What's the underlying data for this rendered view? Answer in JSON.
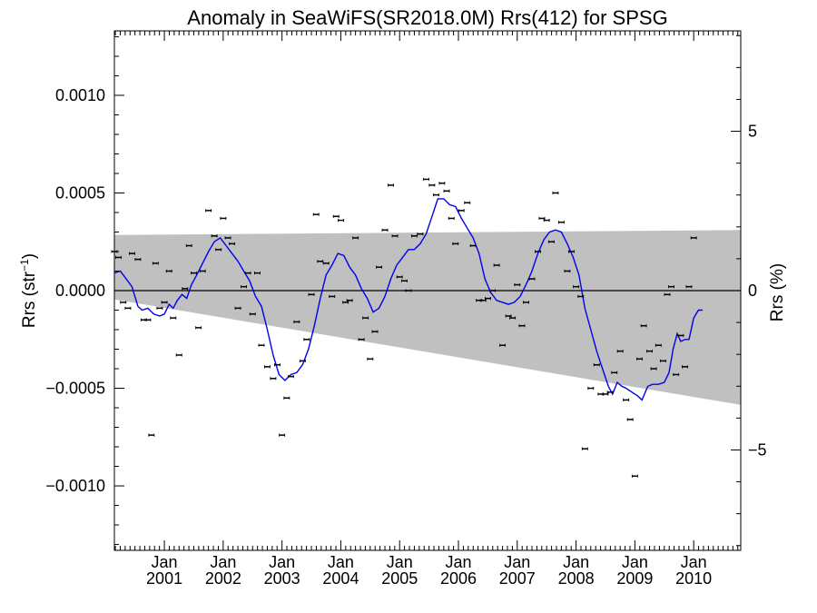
{
  "chart_data": {
    "type": "scatter",
    "title": "Anomaly in SeaWiFS(SR2018.0M) Rrs(412) for SPSG",
    "ylabel": "Rrs (str",
    "ylabel_sup": "−1",
    "ylabel_close": ")",
    "y2label": "Rrs (%)",
    "ylim": [
      -0.00133,
      0.00133
    ],
    "y2lim": [
      -8.15,
      8.15
    ],
    "xlim": [
      2000.15,
      2010.8
    ],
    "grid": false,
    "y_ticks": [
      {
        "value": 0.001,
        "label": "0.0010"
      },
      {
        "value": 0.0005,
        "label": "0.0005"
      },
      {
        "value": 0,
        "label": "0.0000"
      },
      {
        "value": -0.0005,
        "label": "−0.0005"
      },
      {
        "value": -0.001,
        "label": "−0.0010"
      }
    ],
    "y2_ticks": [
      {
        "value": 5,
        "label": "5"
      },
      {
        "value": 0,
        "label": "0"
      },
      {
        "value": -5,
        "label": "−5"
      }
    ],
    "x_ticks": [
      {
        "value": 2001.0,
        "month": "Jan",
        "year": "2001"
      },
      {
        "value": 2002.0,
        "month": "Jan",
        "year": "2002"
      },
      {
        "value": 2003.0,
        "month": "Jan",
        "year": "2003"
      },
      {
        "value": 2004.0,
        "month": "Jan",
        "year": "2004"
      },
      {
        "value": 2005.0,
        "month": "Jan",
        "year": "2005"
      },
      {
        "value": 2006.0,
        "month": "Jan",
        "year": "2006"
      },
      {
        "value": 2007.0,
        "month": "Jan",
        "year": "2007"
      },
      {
        "value": 2008.0,
        "month": "Jan",
        "year": "2008"
      },
      {
        "value": 2009.0,
        "month": "Jan",
        "year": "2009"
      },
      {
        "value": 2010.0,
        "month": "Jan",
        "year": "2010"
      }
    ],
    "shaded_band": {
      "color": "#c0c0c0",
      "upper": [
        [
          2000.15,
          0.000285
        ],
        [
          2010.8,
          0.00031
        ]
      ],
      "lower": [
        [
          2000.15,
          -4.5e-05
        ],
        [
          2010.8,
          -0.000585
        ]
      ]
    },
    "zero_line": 0,
    "series": [
      {
        "type": "line",
        "color": "#0000ee",
        "points": [
          [
            2000.15,
            9e-05
          ],
          [
            2000.25,
            0.0001
          ],
          [
            2000.35,
            6e-05
          ],
          [
            2000.45,
            2e-05
          ],
          [
            2000.55,
            -8e-05
          ],
          [
            2000.62,
            -0.0001
          ],
          [
            2000.72,
            -9e-05
          ],
          [
            2000.82,
            -0.00012
          ],
          [
            2000.92,
            -0.00013
          ],
          [
            2001.0,
            -0.00012
          ],
          [
            2001.08,
            -7e-05
          ],
          [
            2001.15,
            -9e-05
          ],
          [
            2001.22,
            -5e-05
          ],
          [
            2001.3,
            -2e-05
          ],
          [
            2001.38,
            -4e-05
          ],
          [
            2001.46,
            3e-05
          ],
          [
            2001.55,
            8e-05
          ],
          [
            2001.65,
            0.00014
          ],
          [
            2001.75,
            0.0002
          ],
          [
            2001.85,
            0.00025
          ],
          [
            2001.95,
            0.00027
          ],
          [
            2002.05,
            0.00023
          ],
          [
            2002.15,
            0.00019
          ],
          [
            2002.25,
            0.00015
          ],
          [
            2002.35,
            0.0001
          ],
          [
            2002.45,
            5e-05
          ],
          [
            2002.55,
            -3e-05
          ],
          [
            2002.65,
            -8e-05
          ],
          [
            2002.75,
            -0.0002
          ],
          [
            2002.85,
            -0.00033
          ],
          [
            2002.95,
            -0.00043
          ],
          [
            2003.05,
            -0.00046
          ],
          [
            2003.15,
            -0.00043
          ],
          [
            2003.25,
            -0.00042
          ],
          [
            2003.35,
            -0.00038
          ],
          [
            2003.45,
            -0.0003
          ],
          [
            2003.55,
            -0.00018
          ],
          [
            2003.65,
            -4e-05
          ],
          [
            2003.75,
            8e-05
          ],
          [
            2003.85,
            0.00013
          ],
          [
            2003.95,
            0.00019
          ],
          [
            2004.05,
            0.00018
          ],
          [
            2004.15,
            0.00012
          ],
          [
            2004.25,
            8e-05
          ],
          [
            2004.35,
            1e-05
          ],
          [
            2004.45,
            -4e-05
          ],
          [
            2004.55,
            -0.00011
          ],
          [
            2004.65,
            -9e-05
          ],
          [
            2004.75,
            -3e-05
          ],
          [
            2004.85,
            6e-05
          ],
          [
            2004.95,
            0.00013
          ],
          [
            2005.05,
            0.00017
          ],
          [
            2005.15,
            0.00021
          ],
          [
            2005.25,
            0.00021
          ],
          [
            2005.35,
            0.00024
          ],
          [
            2005.45,
            0.00029
          ],
          [
            2005.55,
            0.00038
          ],
          [
            2005.65,
            0.00047
          ],
          [
            2005.75,
            0.00047
          ],
          [
            2005.85,
            0.00044
          ],
          [
            2005.95,
            0.00043
          ],
          [
            2006.05,
            0.00037
          ],
          [
            2006.15,
            0.00032
          ],
          [
            2006.25,
            0.00027
          ],
          [
            2006.35,
            0.00019
          ],
          [
            2006.45,
            6e-05
          ],
          [
            2006.55,
            -1e-05
          ],
          [
            2006.65,
            -5e-05
          ],
          [
            2006.75,
            -6e-05
          ],
          [
            2006.85,
            -7e-05
          ],
          [
            2006.95,
            -6e-05
          ],
          [
            2007.05,
            -3e-05
          ],
          [
            2007.15,
            3e-05
          ],
          [
            2007.25,
            0.0001
          ],
          [
            2007.35,
            0.00019
          ],
          [
            2007.45,
            0.00026
          ],
          [
            2007.55,
            0.0003
          ],
          [
            2007.65,
            0.00031
          ],
          [
            2007.75,
            0.0003
          ],
          [
            2007.85,
            0.00024
          ],
          [
            2007.95,
            0.00017
          ],
          [
            2008.05,
            8e-05
          ],
          [
            2008.15,
            -9e-05
          ],
          [
            2008.25,
            -0.0002
          ],
          [
            2008.35,
            -0.00031
          ],
          [
            2008.45,
            -0.0004
          ],
          [
            2008.55,
            -0.00049
          ],
          [
            2008.62,
            -0.00053
          ],
          [
            2008.7,
            -0.00047
          ],
          [
            2008.78,
            -0.00049
          ],
          [
            2008.85,
            -0.0005
          ],
          [
            2008.95,
            -0.00052
          ],
          [
            2009.05,
            -0.00054
          ],
          [
            2009.12,
            -0.00056
          ],
          [
            2009.22,
            -0.00049
          ],
          [
            2009.3,
            -0.00048
          ],
          [
            2009.4,
            -0.00048
          ],
          [
            2009.5,
            -0.00047
          ],
          [
            2009.58,
            -0.00042
          ],
          [
            2009.65,
            -0.0003
          ],
          [
            2009.72,
            -0.00022
          ],
          [
            2009.78,
            -0.00026
          ],
          [
            2009.85,
            -0.00025
          ],
          [
            2009.92,
            -0.00025
          ],
          [
            2010.0,
            -0.00014
          ],
          [
            2010.08,
            -0.0001
          ],
          [
            2010.15,
            -0.0001
          ]
        ]
      },
      {
        "type": "scatter",
        "color": "#000000",
        "points": [
          [
            2000.15,
            0.0002
          ],
          [
            2000.22,
            0.00017
          ],
          [
            2000.3,
            -6e-05
          ],
          [
            2000.38,
            -9e-05
          ],
          [
            2000.45,
            0.00019
          ],
          [
            2000.55,
            0.00016
          ],
          [
            2000.65,
            -0.00015
          ],
          [
            2000.72,
            -0.00015
          ],
          [
            2000.78,
            -0.00074
          ],
          [
            2000.85,
            0.00014
          ],
          [
            2000.92,
            -9e-05
          ],
          [
            2001.0,
            -6e-05
          ],
          [
            2001.08,
            0.0001
          ],
          [
            2001.15,
            -0.00014
          ],
          [
            2001.25,
            -0.00033
          ],
          [
            2001.35,
            1e-05
          ],
          [
            2001.42,
            0.00023
          ],
          [
            2001.5,
            9e-05
          ],
          [
            2001.58,
            -0.00019
          ],
          [
            2001.65,
            0.0001
          ],
          [
            2001.75,
            0.00041
          ],
          [
            2001.85,
            0.00028
          ],
          [
            2001.92,
            0.00021
          ],
          [
            2002.0,
            0.00037
          ],
          [
            2002.08,
            0.00027
          ],
          [
            2002.15,
            0.00024
          ],
          [
            2002.25,
            -9e-05
          ],
          [
            2002.35,
            2e-05
          ],
          [
            2002.42,
            9e-05
          ],
          [
            2002.5,
            -0.00012
          ],
          [
            2002.58,
            9e-05
          ],
          [
            2002.65,
            -0.00028
          ],
          [
            2002.75,
            -0.00039
          ],
          [
            2002.85,
            -0.00045
          ],
          [
            2002.92,
            -0.00038
          ],
          [
            2003.0,
            -0.00074
          ],
          [
            2003.08,
            -0.00055
          ],
          [
            2003.15,
            -0.00044
          ],
          [
            2003.25,
            -0.00016
          ],
          [
            2003.35,
            -0.00036
          ],
          [
            2003.42,
            -0.00025
          ],
          [
            2003.5,
            -2e-05
          ],
          [
            2003.58,
            0.00039
          ],
          [
            2003.65,
            0.00015
          ],
          [
            2003.75,
            0.00014
          ],
          [
            2003.85,
            -3e-05
          ],
          [
            2003.92,
            0.00038
          ],
          [
            2004.0,
            0.00036
          ],
          [
            2004.08,
            -6e-05
          ],
          [
            2004.15,
            -5e-05
          ],
          [
            2004.25,
            0.00027
          ],
          [
            2004.35,
            -0.00025
          ],
          [
            2004.42,
            -0.00014
          ],
          [
            2004.5,
            -0.00035
          ],
          [
            2004.58,
            -0.00021
          ],
          [
            2004.65,
            0.00012
          ],
          [
            2004.75,
            0.00031
          ],
          [
            2004.85,
            0.00054
          ],
          [
            2004.92,
            0.00028
          ],
          [
            2005.0,
            7e-05
          ],
          [
            2005.08,
            5e-05
          ],
          [
            2005.15,
            0.0
          ],
          [
            2005.25,
            0.00028
          ],
          [
            2005.35,
            0.00029
          ],
          [
            2005.45,
            0.00057
          ],
          [
            2005.55,
            0.00054
          ],
          [
            2005.62,
            0.00049
          ],
          [
            2005.72,
            0.00055
          ],
          [
            2005.8,
            0.00051
          ],
          [
            2005.88,
            0.00037
          ],
          [
            2005.95,
            0.00024
          ],
          [
            2006.05,
            0.00041
          ],
          [
            2006.15,
            0.00045
          ],
          [
            2006.25,
            0.00023
          ],
          [
            2006.35,
            -5e-05
          ],
          [
            2006.42,
            -5e-05
          ],
          [
            2006.5,
            -4e-05
          ],
          [
            2006.58,
            0.0
          ],
          [
            2006.65,
            0.00013
          ],
          [
            2006.75,
            -0.00028
          ],
          [
            2006.85,
            -0.00013
          ],
          [
            2006.92,
            -0.00014
          ],
          [
            2007.0,
            3e-05
          ],
          [
            2007.08,
            -0.00018
          ],
          [
            2007.15,
            -6e-05
          ],
          [
            2007.25,
            6e-05
          ],
          [
            2007.35,
            0.0002
          ],
          [
            2007.42,
            0.00037
          ],
          [
            2007.5,
            0.00036
          ],
          [
            2007.58,
            0.00025
          ],
          [
            2007.65,
            0.0005
          ],
          [
            2007.75,
            0.00035
          ],
          [
            2007.85,
            0.0001
          ],
          [
            2007.92,
            0.0002
          ],
          [
            2008.0,
            2e-05
          ],
          [
            2008.08,
            -3e-05
          ],
          [
            2008.15,
            -0.00081
          ],
          [
            2008.25,
            -0.0005
          ],
          [
            2008.35,
            -0.00038
          ],
          [
            2008.42,
            -0.00053
          ],
          [
            2008.5,
            -0.00053
          ],
          [
            2008.58,
            -0.00052
          ],
          [
            2008.65,
            -0.00042
          ],
          [
            2008.75,
            -0.00031
          ],
          [
            2008.85,
            -0.00056
          ],
          [
            2008.92,
            -0.00066
          ],
          [
            2009.0,
            -0.00095
          ],
          [
            2009.08,
            -0.00035
          ],
          [
            2009.15,
            -0.00018
          ],
          [
            2009.25,
            -0.00031
          ],
          [
            2009.32,
            -0.0004
          ],
          [
            2009.4,
            -0.00028
          ],
          [
            2009.48,
            -0.00036
          ],
          [
            2009.55,
            -2e-05
          ],
          [
            2009.62,
            2e-05
          ],
          [
            2009.7,
            -0.00043
          ],
          [
            2009.78,
            -0.00023
          ],
          [
            2009.85,
            -0.00039
          ],
          [
            2009.92,
            2e-05
          ],
          [
            2010.0,
            0.00027
          ]
        ]
      }
    ]
  }
}
